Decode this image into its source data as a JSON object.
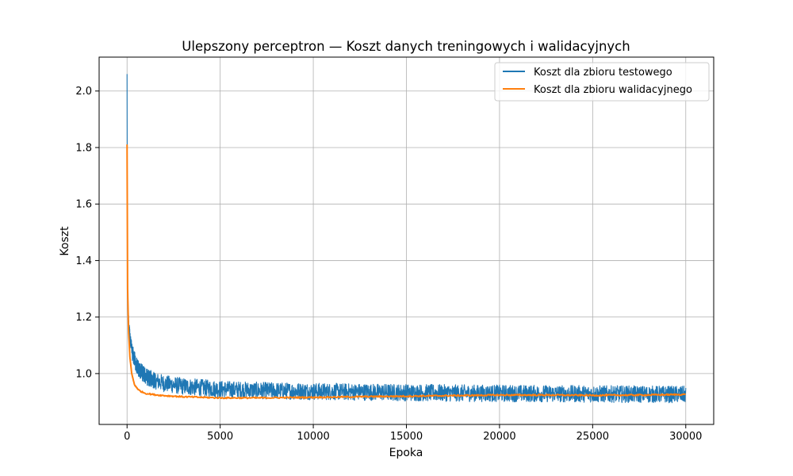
{
  "chart_data": {
    "type": "line",
    "title": "Ulepszony perceptron — Koszt danych treningowych i walidacyjnych",
    "xlabel": "Epoka",
    "ylabel": "Koszt",
    "xlim": [
      -1500,
      31500
    ],
    "ylim": [
      0.82,
      2.12
    ],
    "x_ticks": [
      0,
      5000,
      10000,
      15000,
      20000,
      25000,
      30000
    ],
    "x_tick_labels": [
      "0",
      "5000",
      "10000",
      "15000",
      "20000",
      "25000",
      "30000"
    ],
    "y_ticks": [
      1.0,
      1.2,
      1.4,
      1.6,
      1.8,
      2.0
    ],
    "y_tick_labels": [
      "1.0",
      "1.2",
      "1.4",
      "1.6",
      "1.8",
      "2.0"
    ],
    "grid": true,
    "legend_position": "top-right",
    "series": [
      {
        "name": "Koszt dla zbioru testowego",
        "color": "#1f77b4",
        "noisy": true,
        "x": [
          0,
          20,
          50,
          100,
          200,
          300,
          500,
          700,
          1000,
          1500,
          2000,
          3000,
          4000,
          5000,
          7000,
          10000,
          12500,
          15000,
          17500,
          20000,
          22500,
          25000,
          27500,
          30000
        ],
        "y": [
          2.06,
          1.35,
          1.22,
          1.16,
          1.1,
          1.07,
          1.03,
          1.01,
          0.99,
          0.975,
          0.965,
          0.955,
          0.95,
          0.945,
          0.94,
          0.937,
          0.935,
          0.933,
          0.931,
          0.93,
          0.929,
          0.928,
          0.927,
          0.926
        ],
        "band": [
          0.0,
          0.02,
          0.02,
          0.025,
          0.028,
          0.03,
          0.03,
          0.03,
          0.03,
          0.03,
          0.03,
          0.03,
          0.03,
          0.03,
          0.03,
          0.03,
          0.03,
          0.03,
          0.03,
          0.03,
          0.03,
          0.03,
          0.03,
          0.03
        ]
      },
      {
        "name": "Koszt dla zbioru walidacyjnego",
        "color": "#ff7f0e",
        "noisy": false,
        "x": [
          0,
          30,
          80,
          150,
          250,
          400,
          600,
          800,
          1000,
          1500,
          2000,
          3000,
          4000,
          5000,
          7000,
          10000,
          12500,
          15000,
          17500,
          20000,
          22500,
          25000,
          27500,
          30000
        ],
        "y": [
          1.81,
          1.3,
          1.15,
          1.06,
          1.0,
          0.96,
          0.943,
          0.935,
          0.93,
          0.925,
          0.922,
          0.918,
          0.916,
          0.914,
          0.914,
          0.916,
          0.918,
          0.92,
          0.922,
          0.924,
          0.924,
          0.923,
          0.924,
          0.926
        ]
      }
    ]
  }
}
